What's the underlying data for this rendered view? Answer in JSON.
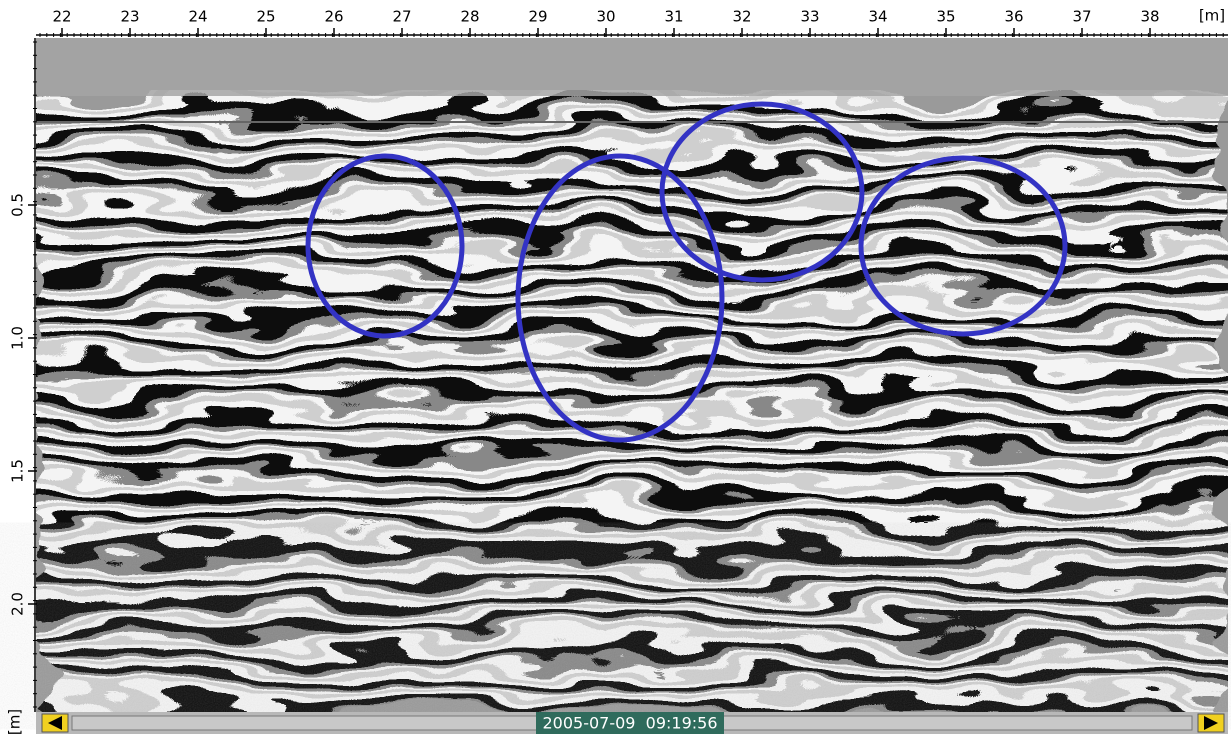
{
  "x_axis": {
    "unit": "[m]",
    "ticks": [
      22,
      23,
      24,
      25,
      26,
      27,
      28,
      29,
      30,
      31,
      32,
      33,
      34,
      35,
      36,
      37,
      38
    ]
  },
  "y_axis": {
    "unit": "[m]",
    "ticks": [
      {
        "value": 0.5,
        "label": "0.5"
      },
      {
        "value": 1,
        "label": "1.0"
      },
      {
        "value": 1.5,
        "label": "1.5"
      },
      {
        "value": 2,
        "label": "2.0"
      }
    ]
  },
  "status": {
    "timestamp": "2005-07-09  09:19:56"
  }
}
